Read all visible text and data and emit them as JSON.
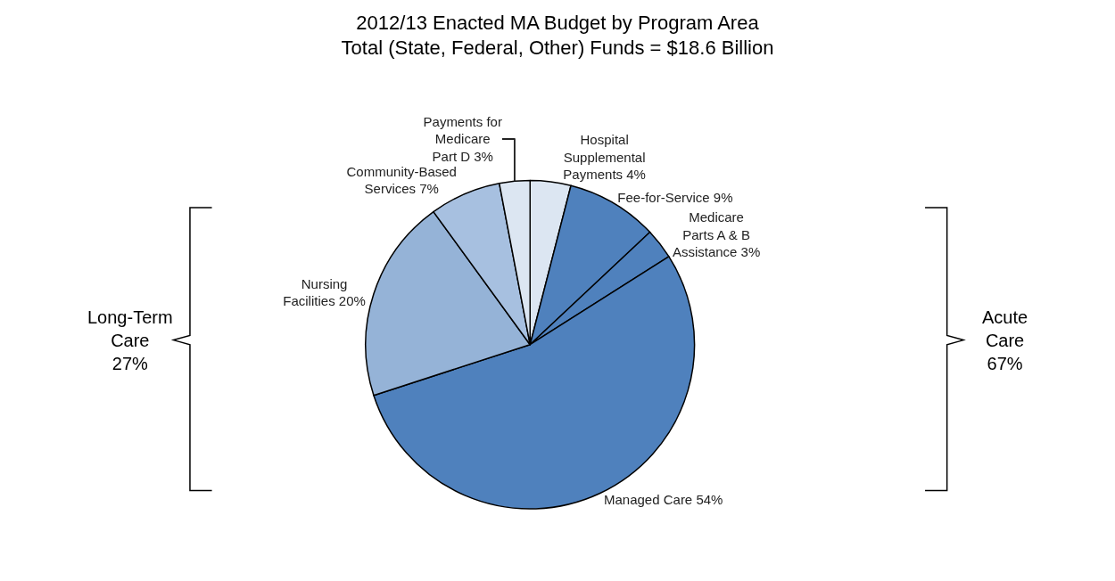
{
  "chart_data": {
    "type": "pie",
    "title": "2012/13 Enacted MA Budget by Program Area",
    "subtitle": "Total (State, Federal, Other) Funds = $18.6 Billion",
    "categories": [
      "Hospital\nSupplemental\nPayments",
      "Fee-for-Service",
      "Medicare\nParts A & B\nAssistance",
      "Managed Care",
      "Nursing\nFacilities",
      "Community-Based\nServices",
      "Payments for\nMedicare\nPart D"
    ],
    "values": [
      4,
      9,
      3,
      54,
      20,
      7,
      3
    ],
    "value_labels": [
      "4%",
      "9%",
      "3%",
      "54%",
      "20%",
      "7%",
      "3%"
    ],
    "colors": [
      "#dce6f2",
      "#4f81bd",
      "#4f81bd",
      "#4f81bd",
      "#95b3d7",
      "#a7c0e0",
      "#dce6f2"
    ],
    "annotations": [
      "Long-Term\nCare\n27%",
      "Acute\nCare\n67%"
    ],
    "legend": false
  }
}
